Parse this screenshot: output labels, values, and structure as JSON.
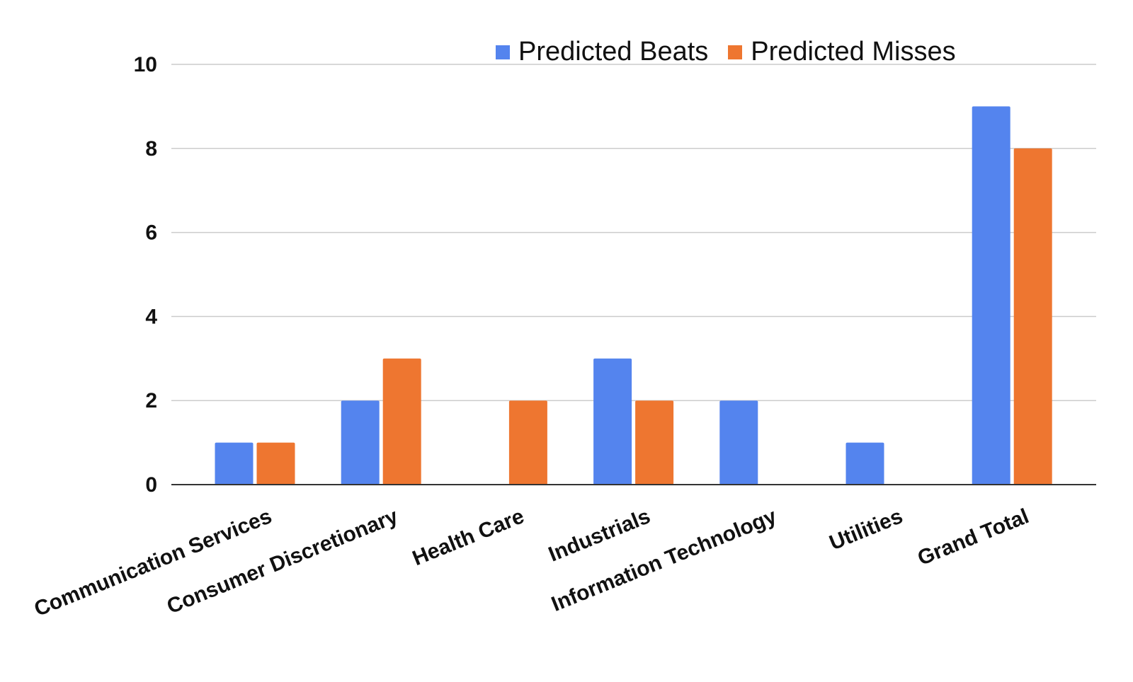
{
  "chart_data": {
    "type": "bar",
    "categories": [
      "Communication Services",
      "Consumer Discretionary",
      "Health Care",
      "Industrials",
      "Information Technology",
      "Utilities",
      "Grand Total"
    ],
    "series": [
      {
        "name": "Predicted Beats",
        "values": [
          1,
          2,
          0,
          3,
          2,
          1,
          9
        ],
        "color": "#5484ee"
      },
      {
        "name": "Predicted Misses",
        "values": [
          1,
          3,
          2,
          2,
          0,
          0,
          8
        ],
        "color": "#ee7630"
      }
    ],
    "ylim": [
      0,
      10
    ],
    "yticks": [
      "0",
      "2",
      "4",
      "6",
      "8",
      "10"
    ],
    "grid": true,
    "legend_position": "top-right",
    "title": "",
    "xlabel": "",
    "ylabel": ""
  }
}
